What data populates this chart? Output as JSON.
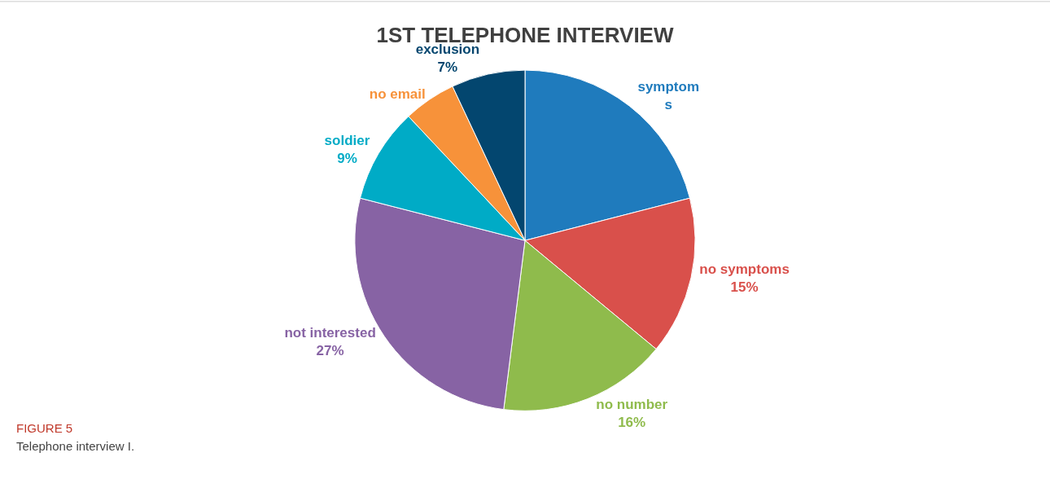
{
  "chart_data": {
    "type": "pie",
    "title": "1ST TELEPHONE INTERVIEW",
    "categories": [
      "symptom\ns",
      "no symptoms",
      "no number",
      "not interested",
      "soldier",
      "no email",
      "exclusion"
    ],
    "values": [
      21,
      15,
      16,
      27,
      9,
      5,
      7
    ],
    "value_labels": [
      null,
      "15%",
      "16%",
      "27%",
      "9%",
      null,
      "7%"
    ],
    "colors": [
      "#1f7bbd",
      "#d9504b",
      "#8fbb4c",
      "#8763a4",
      "#00abc6",
      "#f7923a",
      "#03466f"
    ],
    "legend": false,
    "annotations": [
      "FIGURE 5",
      "Telephone interview I."
    ]
  }
}
